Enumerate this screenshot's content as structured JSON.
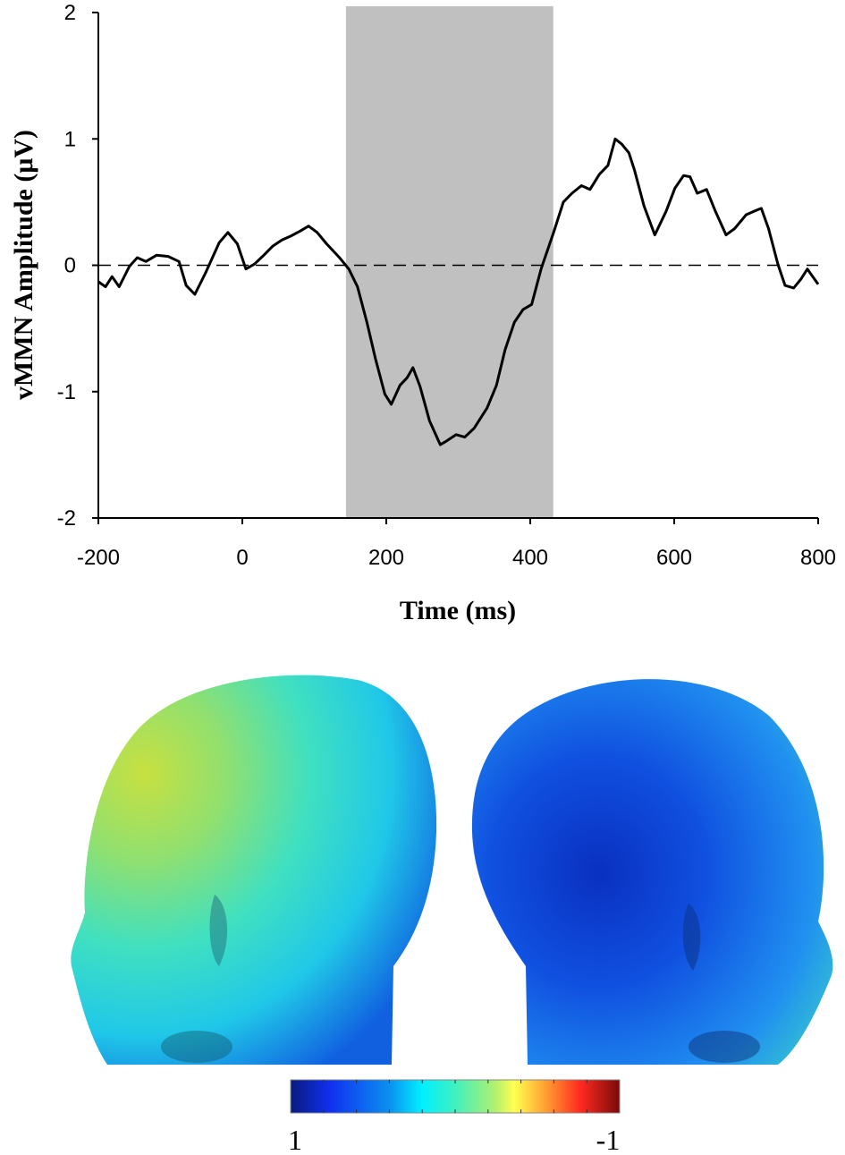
{
  "chart_data": {
    "type": "line",
    "title": "",
    "xlabel": "Time (ms)",
    "ylabel": "vMMN Amplitude (μV)",
    "xlim": [
      -200,
      800
    ],
    "ylim": [
      -2,
      2
    ],
    "xticks": [
      -200,
      0,
      200,
      400,
      600,
      800
    ],
    "yticks": [
      -2,
      -1,
      0,
      1,
      2
    ],
    "xtick_labels": [
      "-200",
      "0",
      "200",
      "400",
      "600",
      "800"
    ],
    "ytick_labels": [
      "-2",
      "-1",
      "0",
      "1",
      "2"
    ],
    "grid": false,
    "reference_line": {
      "y": 0,
      "style": "dashed"
    },
    "shaded_window": {
      "x_start": 144,
      "x_end": 432,
      "color": "#c0c0c0"
    },
    "series": [
      {
        "color": "#000000",
        "x": [
          -200,
          -190,
          -181,
          -171,
          -157,
          -146,
          -134,
          -119,
          -103,
          -88,
          -78,
          -66,
          -51,
          -32,
          -20,
          -7,
          5,
          17,
          30,
          42,
          55,
          67,
          80,
          92,
          104,
          117,
          135,
          148,
          160,
          173,
          185,
          198,
          207,
          219,
          229,
          237,
          247,
          260,
          275,
          284,
          297,
          309,
          322,
          340,
          353,
          365,
          378,
          390,
          402,
          415,
          433,
          446,
          458,
          471,
          483,
          496,
          508,
          518,
          527,
          537,
          545,
          558,
          573,
          589,
          601,
          613,
          622,
          632,
          645,
          657,
          672,
          684,
          700,
          716,
          721,
          731,
          744,
          754,
          766,
          776,
          785,
          800
        ],
        "y": [
          -0.13,
          -0.17,
          -0.09,
          -0.17,
          -0.01,
          0.06,
          0.03,
          0.08,
          0.07,
          0.03,
          -0.16,
          -0.23,
          -0.06,
          0.18,
          0.26,
          0.17,
          -0.03,
          0.01,
          0.08,
          0.15,
          0.2,
          0.23,
          0.27,
          0.31,
          0.26,
          0.17,
          0.06,
          -0.03,
          -0.17,
          -0.45,
          -0.74,
          -1.02,
          -1.1,
          -0.95,
          -0.89,
          -0.81,
          -0.96,
          -1.23,
          -1.42,
          -1.39,
          -1.34,
          -1.36,
          -1.29,
          -1.13,
          -0.95,
          -0.67,
          -0.45,
          -0.35,
          -0.31,
          -0.03,
          0.27,
          0.5,
          0.57,
          0.63,
          0.6,
          0.72,
          0.79,
          1.0,
          0.96,
          0.89,
          0.75,
          0.47,
          0.24,
          0.43,
          0.61,
          0.71,
          0.7,
          0.57,
          0.6,
          0.43,
          0.24,
          0.29,
          0.4,
          0.44,
          0.45,
          0.29,
          0.01,
          -0.16,
          -0.18,
          -0.11,
          -0.03,
          -0.15
        ]
      }
    ]
  },
  "topography": {
    "views": [
      "left-head",
      "right-head"
    ],
    "colorbar": {
      "min_label": "1",
      "max_label": "-1",
      "colors": [
        "#00008f",
        "#0020ff",
        "#0080ff",
        "#00ffff",
        "#80ff80",
        "#ffff40",
        "#ff8020",
        "#ff2010",
        "#800000"
      ]
    }
  }
}
